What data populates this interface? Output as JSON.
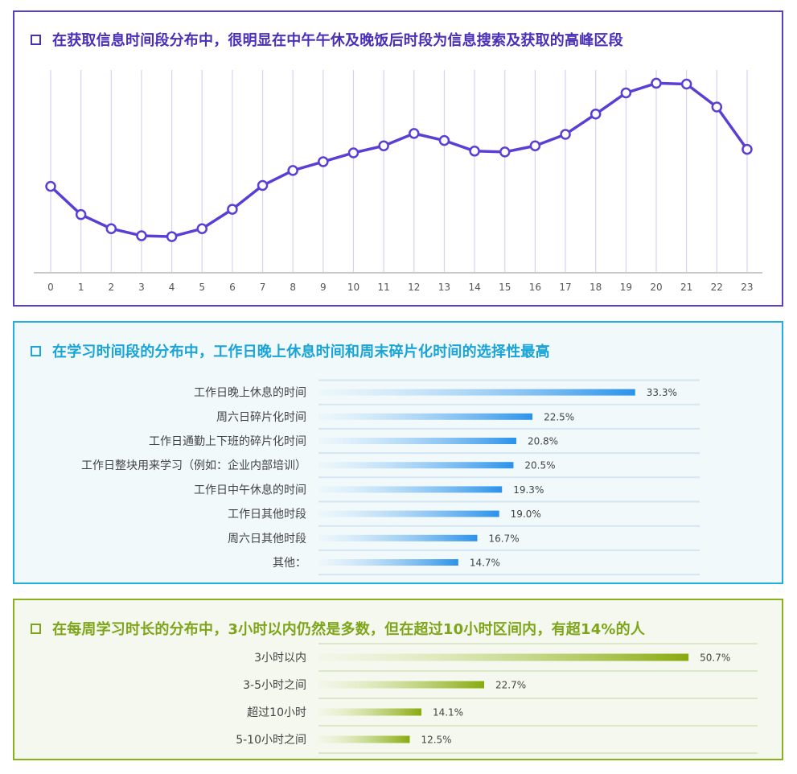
{
  "panels": [
    {
      "title": "在获取信息时间段分布中，很明显在中午午休及晚饭后时段为信息搜索及获取的高峰区段",
      "colors": {
        "accent": "#5b3fd4",
        "grid": "#d8d2f2",
        "axis": "#c8c8c8"
      }
    },
    {
      "title": "在学习时间段的分布中，工作日晚上休息时间和周末碎片化时间的选择性最高",
      "colors": {
        "accent": "#2b92ea",
        "grid": "#d4e5f3"
      }
    },
    {
      "title": "在每周学习时长的分布中，3小时以内仍然是多数，但在超过10小时区间内，有超14%的人",
      "colors": {
        "accent": "#88aa0e",
        "grid": "#dbe8c8"
      }
    }
  ],
  "chart_data": [
    {
      "type": "line",
      "title": "",
      "x": [
        "0",
        "1",
        "2",
        "3",
        "4",
        "5",
        "6",
        "7",
        "8",
        "9",
        "10",
        "11",
        "12",
        "13",
        "14",
        "15",
        "16",
        "17",
        "18",
        "19",
        "20",
        "21",
        "22",
        "23"
      ],
      "values": [
        37,
        21,
        13,
        9,
        8.5,
        13,
        24,
        37.5,
        46,
        51,
        56,
        60,
        67,
        63,
        57,
        56.5,
        60,
        66.5,
        78,
        90,
        95.5,
        95,
        82,
        58
      ],
      "ylim": [
        -12,
        103
      ],
      "grid": true,
      "show_y_axis": false
    },
    {
      "type": "bar",
      "orientation": "horizontal",
      "categories": [
        "工作日晚上休息的时间",
        "周六日碎片化时间",
        "工作日通勤上下班的碎片化时间",
        "工作日整块用来学习（例如：企业内部培训）",
        "工作日中午休息的时间",
        "工作日其他时段",
        "周六日其他时段",
        "其他："
      ],
      "values": [
        33.3,
        22.5,
        20.8,
        20.5,
        19.3,
        19.0,
        16.7,
        14.7
      ],
      "labels": [
        "33.3%",
        "22.5%",
        "20.8%",
        "20.5%",
        "19.3%",
        "19.0%",
        "16.7%",
        "14.7%"
      ],
      "xlim": [
        0,
        40
      ]
    },
    {
      "type": "bar",
      "orientation": "horizontal",
      "categories": [
        "3小时以内",
        "3-5小时之间",
        "超过10小时",
        "5-10小时之间"
      ],
      "values": [
        50.7,
        22.7,
        14.1,
        12.5
      ],
      "labels": [
        "50.7%",
        "22.7%",
        "14.1%",
        "12.5%"
      ],
      "xlim": [
        0,
        53
      ]
    }
  ]
}
